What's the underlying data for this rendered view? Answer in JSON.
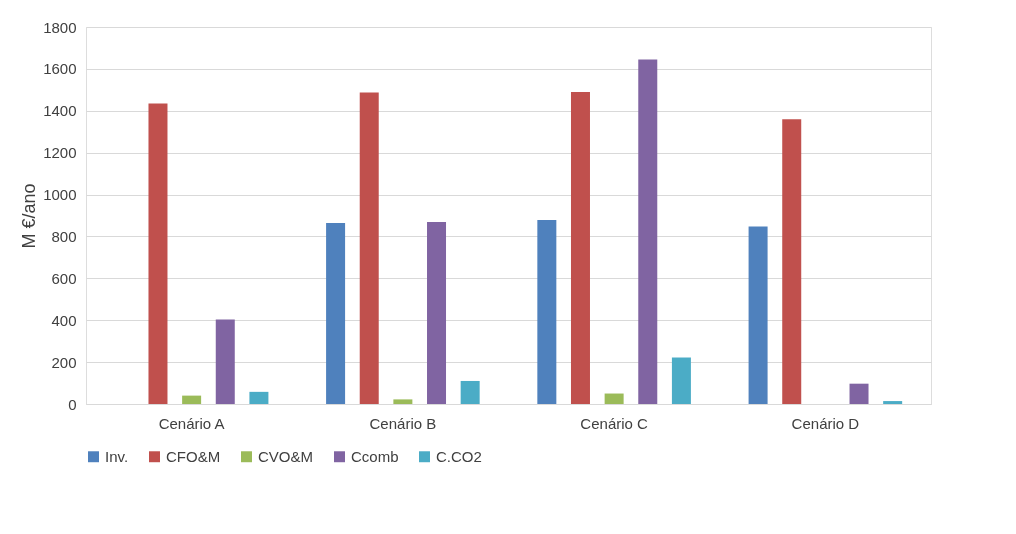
{
  "chart_data": {
    "type": "bar",
    "ylabel": "M €/ano",
    "categories": [
      "Cenário A",
      "Cenário B",
      "Cenário C",
      "Cenário D"
    ],
    "series": [
      {
        "name": "Inv.",
        "color": "#4f81bd",
        "values": [
          0,
          864,
          879,
          847
        ]
      },
      {
        "name": "CFO&M",
        "color": "#c0504d",
        "values": [
          1435,
          1487,
          1490,
          1360
        ]
      },
      {
        "name": "CVO&M",
        "color": "#9bbb59",
        "values": [
          40,
          22,
          50,
          0
        ]
      },
      {
        "name": "Ccomb",
        "color": "#8064a2",
        "values": [
          403,
          869,
          1645,
          97
        ]
      },
      {
        "name": "C.CO2",
        "color": "#4bacc6",
        "values": [
          58,
          110,
          222,
          14
        ]
      }
    ],
    "ylim": [
      0,
      1800
    ],
    "yticks": [
      0,
      200,
      400,
      600,
      800,
      1000,
      1200,
      1400,
      1600,
      1800
    ],
    "grid": "y",
    "legend": "bottom"
  }
}
